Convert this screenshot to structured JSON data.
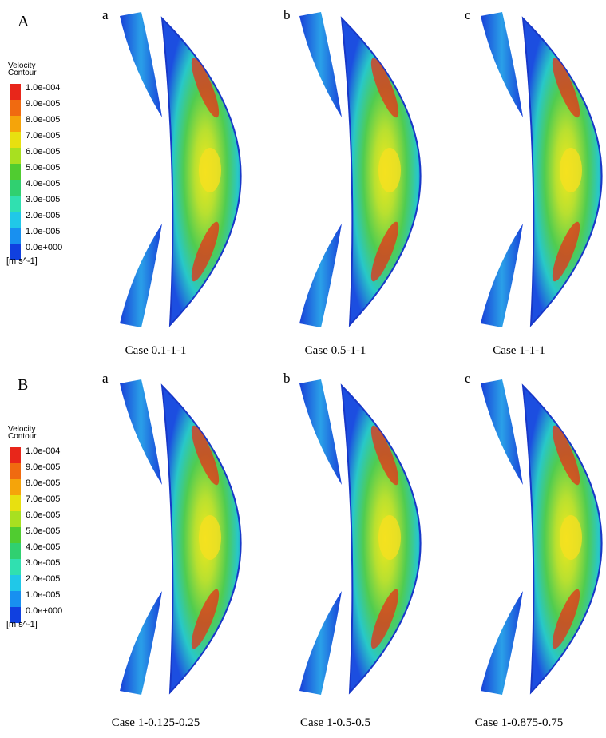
{
  "panels": [
    {
      "label": "A",
      "legend": {
        "title": [
          "Velocity",
          "Contour"
        ],
        "ticks": [
          "1.0e-004",
          "9.0e-005",
          "8.0e-005",
          "7.0e-005",
          "6.0e-005",
          "5.0e-005",
          "4.0e-005",
          "3.0e-005",
          "2.0e-005",
          "1.0e-005",
          "0.0e+000"
        ],
        "unit": "[m s^-1]"
      },
      "plots": [
        {
          "letter": "a",
          "caption": "Case 0.1-1-1"
        },
        {
          "letter": "b",
          "caption": "Case 0.5-1-1"
        },
        {
          "letter": "c",
          "caption": "Case 1-1-1"
        }
      ]
    },
    {
      "label": "B",
      "legend": {
        "title": [
          "Velocity",
          "Contour"
        ],
        "ticks": [
          "1.0e-004",
          "9.0e-005",
          "8.0e-005",
          "7.0e-005",
          "6.0e-005",
          "5.0e-005",
          "4.0e-005",
          "3.0e-005",
          "2.0e-005",
          "1.0e-005",
          "0.0e+000"
        ],
        "unit": "[m s^-1]"
      },
      "plots": [
        {
          "letter": "a",
          "caption": "Case 1-0.125-0.25"
        },
        {
          "letter": "b",
          "caption": "Case 1-0.5-0.5"
        },
        {
          "letter": "c",
          "caption": "Case 1-0.875-0.75"
        }
      ]
    }
  ]
}
